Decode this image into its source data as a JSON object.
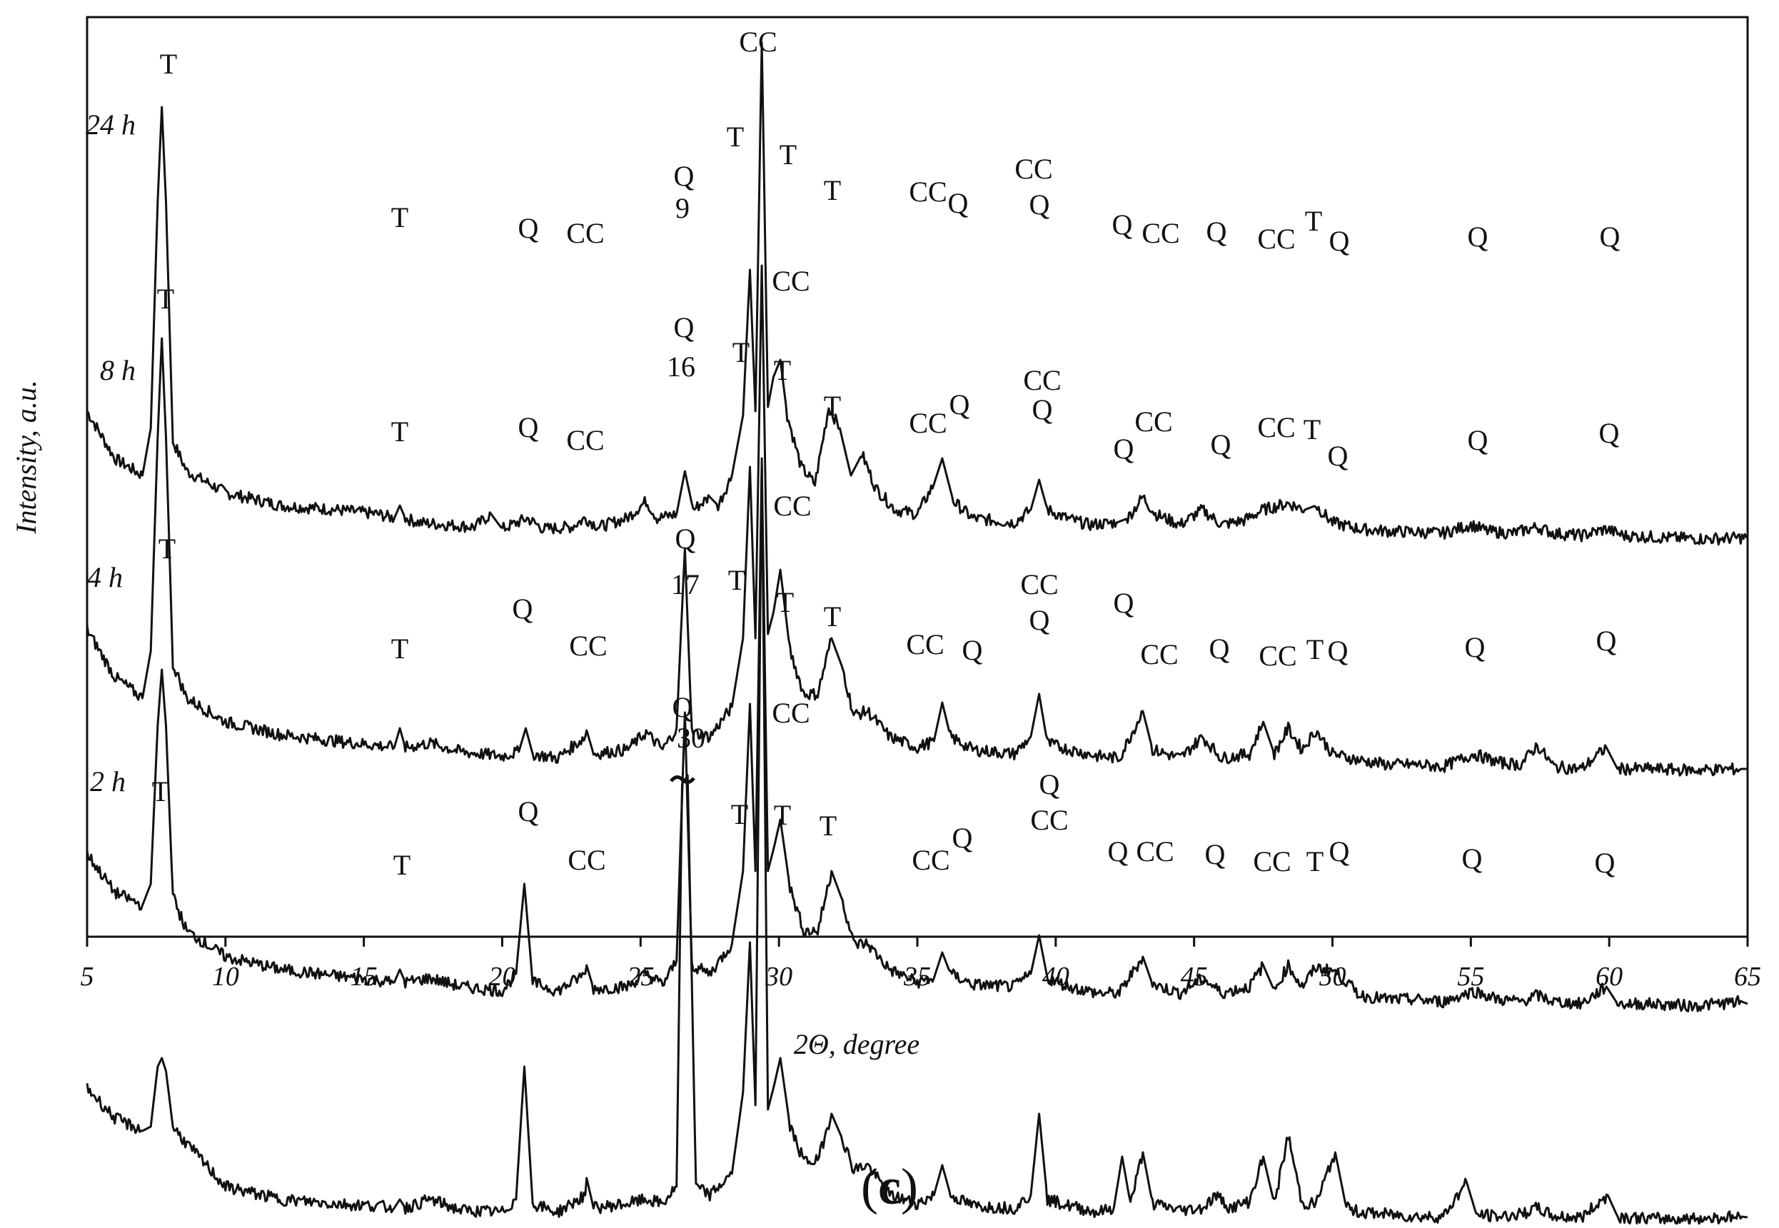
{
  "chart_data": {
    "type": "line",
    "xlabel": "2Θ, degree",
    "ylabel": "Intensity, a.u.",
    "xlim": [
      5,
      65
    ],
    "y_ticks_shown": false,
    "grid": false,
    "legend": "none",
    "panel_label": "(c)",
    "x_ticks": [
      5,
      10,
      15,
      20,
      25,
      30,
      35,
      40,
      45,
      50,
      55,
      60,
      65
    ],
    "line_color": "#111111",
    "series": [
      {
        "name": "24 h",
        "x": [
          5,
          6,
          7,
          7.3,
          7.55,
          7.7,
          7.85,
          8.1,
          8.6,
          10,
          12,
          14,
          15.5,
          16.1,
          16.3,
          16.5,
          17,
          18,
          19,
          19.6,
          20,
          20.9,
          21.5,
          22.5,
          23,
          23.5,
          24.5,
          25.2,
          25.6,
          26.3,
          26.6,
          26.9,
          27.5,
          27.8,
          28.3,
          28.7,
          28.95,
          29.15,
          29.38,
          29.6,
          29.8,
          30.05,
          30.3,
          30.8,
          31.3,
          31.8,
          32.2,
          32.6,
          33,
          33.5,
          34.2,
          35,
          35.6,
          35.9,
          36.3,
          37,
          38.5,
          39.1,
          39.4,
          39.7,
          40.4,
          41.2,
          42.2,
          42.6,
          43.15,
          43.6,
          44.5,
          45.3,
          46,
          46.8,
          47.5,
          48.4,
          49,
          49.4,
          50,
          51,
          52,
          53,
          54,
          55,
          55.6,
          56.5,
          57.4,
          58,
          59,
          59.9,
          60.5,
          62,
          63.5,
          65
        ],
        "y": [
          7.6,
          6.5,
          6.1,
          7.2,
          12.5,
          14.7,
          12.5,
          6.9,
          6.2,
          5.7,
          5.4,
          5.3,
          5.2,
          5.1,
          5.4,
          5.1,
          5.0,
          4.95,
          4.9,
          5.2,
          4.85,
          5.1,
          4.85,
          4.9,
          5.1,
          4.9,
          5.1,
          5.5,
          5.1,
          5.2,
          6.2,
          5.3,
          5.6,
          5.4,
          6.1,
          7.5,
          10.9,
          7.6,
          16.2,
          7.7,
          8.4,
          8.8,
          7.5,
          6.3,
          5.9,
          7.7,
          7.2,
          6.1,
          6.6,
          5.8,
          5.3,
          5.2,
          5.9,
          6.5,
          5.5,
          5.1,
          5.0,
          5.3,
          6.0,
          5.3,
          5.1,
          4.95,
          5.0,
          5.1,
          5.6,
          5.2,
          4.95,
          5.3,
          4.95,
          5.05,
          5.3,
          5.45,
          5.3,
          5.4,
          5.0,
          4.85,
          4.8,
          4.78,
          4.75,
          4.95,
          4.8,
          4.75,
          4.9,
          4.75,
          4.7,
          4.85,
          4.7,
          4.65,
          4.62,
          4.65
        ],
        "annotations": [
          "T",
          "T",
          "Q",
          "CC",
          "Q",
          "9",
          "T",
          "CC",
          "T",
          "T",
          "CC",
          "Q",
          "CC",
          "Q",
          "Q",
          "CC",
          "Q",
          "CC",
          "T",
          "Q",
          "Q",
          "Q"
        ]
      },
      {
        "name": "8 h",
        "x": [
          5,
          6,
          7,
          7.3,
          7.55,
          7.7,
          7.85,
          8.1,
          8.6,
          10,
          12,
          14,
          15.5,
          16.1,
          16.3,
          16.5,
          17.4,
          18.5,
          20,
          20.6,
          20.85,
          21.1,
          22,
          23,
          23.05,
          23.3,
          24.5,
          25.2,
          25.8,
          26.3,
          26.6,
          26.85,
          27.5,
          28.3,
          28.7,
          28.95,
          29.15,
          29.38,
          29.6,
          29.8,
          30.05,
          30.4,
          30.9,
          31.4,
          31.9,
          32.3,
          32.7,
          33.2,
          34,
          35,
          35.6,
          35.9,
          36.2,
          37,
          38.5,
          39.1,
          39.4,
          39.7,
          40.5,
          41.5,
          42.3,
          43.15,
          43.5,
          44.5,
          45.3,
          46,
          47,
          47.5,
          47.9,
          48.4,
          48.9,
          49.4,
          50,
          51,
          52,
          53,
          54,
          55.1,
          56,
          56.8,
          57.4,
          58,
          59,
          59.9,
          60.3,
          61.5,
          63,
          64.8,
          65
        ],
        "y": [
          8.1,
          7.0,
          6.5,
          7.6,
          12.6,
          14.9,
          12.6,
          7.3,
          6.5,
          5.95,
          5.65,
          5.5,
          5.4,
          5.35,
          5.8,
          5.35,
          5.45,
          5.25,
          5.15,
          5.25,
          5.8,
          5.2,
          5.1,
          5.6,
          5.75,
          5.2,
          5.3,
          5.7,
          5.3,
          5.8,
          10.0,
          5.7,
          5.6,
          6.3,
          7.9,
          11.9,
          7.9,
          16.6,
          8.0,
          8.5,
          9.5,
          7.6,
          6.6,
          6.6,
          7.9,
          7.2,
          6.1,
          6.2,
          5.6,
          5.35,
          5.5,
          6.4,
          5.6,
          5.3,
          5.2,
          5.6,
          6.6,
          5.45,
          5.3,
          5.15,
          5.1,
          6.2,
          5.3,
          5.1,
          5.6,
          5.1,
          5.2,
          5.95,
          5.2,
          5.8,
          5.3,
          5.75,
          5.2,
          5.05,
          4.95,
          4.95,
          4.9,
          5.2,
          5.0,
          4.95,
          5.4,
          4.9,
          4.85,
          5.35,
          4.85,
          4.85,
          4.82,
          4.85,
          4.85
        ],
        "annotations": [
          "T",
          "T",
          "Q",
          "CC",
          "Q",
          "16",
          "T",
          "CC",
          "T",
          "T",
          "CC",
          "Q",
          "CC",
          "Q",
          "Q",
          "CC",
          "Q",
          "CC",
          "T",
          "Q",
          "Q",
          "Q"
        ]
      },
      {
        "name": "4 h",
        "x": [
          5,
          6,
          7,
          7.3,
          7.55,
          7.7,
          7.85,
          8.1,
          8.6,
          10,
          12,
          14,
          15.5,
          16.1,
          16.3,
          16.5,
          17.4,
          18.5,
          20,
          20.5,
          20.8,
          21.1,
          22,
          23,
          23.05,
          23.3,
          24.5,
          25.2,
          25.8,
          26.3,
          26.6,
          26.85,
          27.5,
          28.3,
          28.7,
          28.95,
          29.15,
          29.38,
          29.6,
          29.8,
          30.05,
          30.4,
          30.9,
          31.4,
          31.9,
          32.3,
          32.7,
          33.2,
          34,
          35,
          35.6,
          35.9,
          36.2,
          37,
          38.5,
          39.1,
          39.4,
          39.7,
          40.5,
          41.5,
          42.3,
          43.15,
          43.5,
          44.5,
          45.3,
          46,
          47,
          47.5,
          47.9,
          48.4,
          48.9,
          49.4,
          50.1,
          51,
          52,
          53,
          54,
          55.1,
          56,
          56.8,
          57.4,
          58,
          59,
          59.9,
          60.3,
          61.5,
          63,
          64.8,
          65
        ],
        "y": [
          8.4,
          7.5,
          7.2,
          7.7,
          11.4,
          12.7,
          11.4,
          7.4,
          6.6,
          6.0,
          5.7,
          5.55,
          5.45,
          5.4,
          5.7,
          5.4,
          5.5,
          5.3,
          5.2,
          5.6,
          7.7,
          5.4,
          5.2,
          5.6,
          5.8,
          5.25,
          5.3,
          5.6,
          5.35,
          5.9,
          11.7,
          5.8,
          5.6,
          6.3,
          8.0,
          11.9,
          8.0,
          17.5,
          8.0,
          8.5,
          9.2,
          7.6,
          6.6,
          6.6,
          8.0,
          7.3,
          6.3,
          6.3,
          5.7,
          5.4,
          5.5,
          6.1,
          5.6,
          5.35,
          5.3,
          5.6,
          6.5,
          5.5,
          5.3,
          5.15,
          5.15,
          6.0,
          5.35,
          5.15,
          5.5,
          5.15,
          5.3,
          5.8,
          5.2,
          5.8,
          5.3,
          5.75,
          5.65,
          5.1,
          5.0,
          5.0,
          4.95,
          5.2,
          5.0,
          4.95,
          5.1,
          4.95,
          4.9,
          5.3,
          4.9,
          4.9,
          4.85,
          4.95,
          4.9
        ],
        "annotations": [
          "T",
          "T",
          "Q",
          "CC",
          "Q",
          "17",
          "T",
          "CC",
          "T",
          "T",
          "CC",
          "Q",
          "CC",
          "Q",
          "Q",
          "CC",
          "Q",
          "CC",
          "T",
          "Q",
          "Q",
          "Q"
        ]
      },
      {
        "name": "2 h",
        "x": [
          5,
          6,
          7,
          7.3,
          7.55,
          7.7,
          7.85,
          8.1,
          8.6,
          10,
          12,
          14,
          15.5,
          16.1,
          16.3,
          16.5,
          17.4,
          18.5,
          20,
          20.5,
          20.8,
          21.1,
          22,
          23,
          23.05,
          23.3,
          24.5,
          25.2,
          25.8,
          26.3,
          26.5,
          26.7,
          27.0,
          27.5,
          28.3,
          28.7,
          28.95,
          29.15,
          29.38,
          29.6,
          29.8,
          30.05,
          30.4,
          30.9,
          31.4,
          31.9,
          32.3,
          32.7,
          33.2,
          34,
          35,
          35.6,
          35.9,
          36.2,
          37,
          38.5,
          39.1,
          39.4,
          39.7,
          40.5,
          41.5,
          42.1,
          42.4,
          42.7,
          43.15,
          43.5,
          44.5,
          45.3,
          45.8,
          46.3,
          47,
          47.5,
          47.9,
          48.4,
          48.9,
          49.4,
          50.1,
          50.5,
          51,
          52,
          53,
          54,
          54.85,
          55.2,
          56,
          56.8,
          57.4,
          58,
          59,
          59.95,
          60.3,
          61.5,
          63,
          64.8,
          65
        ],
        "y": [
          7.9,
          7.2,
          6.9,
          7.0,
          8.4,
          8.6,
          8.3,
          7.0,
          6.6,
          5.6,
          5.3,
          5.2,
          5.15,
          5.1,
          5.3,
          5.1,
          5.3,
          5.05,
          5.0,
          5.3,
          8.4,
          5.2,
          5.0,
          5.4,
          5.8,
          5.1,
          5.2,
          5.3,
          5.2,
          5.6,
          15.0,
          15.2,
          5.6,
          5.4,
          5.9,
          7.8,
          11.3,
          7.5,
          22.6,
          7.4,
          7.9,
          8.6,
          7.0,
          6.2,
          6.2,
          7.3,
          6.7,
          6.0,
          6.1,
          5.4,
          5.2,
          5.4,
          6.1,
          5.4,
          5.15,
          5.1,
          5.4,
          7.3,
          5.3,
          5.15,
          5.0,
          5.1,
          6.3,
          5.2,
          6.4,
          5.2,
          5.05,
          5.1,
          5.4,
          5.1,
          5.25,
          6.3,
          5.2,
          6.8,
          5.2,
          5.2,
          6.4,
          5.1,
          5.0,
          4.95,
          4.9,
          4.9,
          5.7,
          4.95,
          4.9,
          4.95,
          5.1,
          4.9,
          4.88,
          5.4,
          4.9,
          4.85,
          4.85,
          4.9,
          4.88
        ],
        "annotations": [
          "T",
          "T",
          "Q",
          "CC",
          "Q",
          "30",
          "T",
          "CC",
          "T",
          "T",
          "CC",
          "Q",
          "CC",
          "Q",
          "Q",
          "CC",
          "Q",
          "CC",
          "T",
          "Q",
          "Q",
          "Q"
        ]
      }
    ]
  }
}
